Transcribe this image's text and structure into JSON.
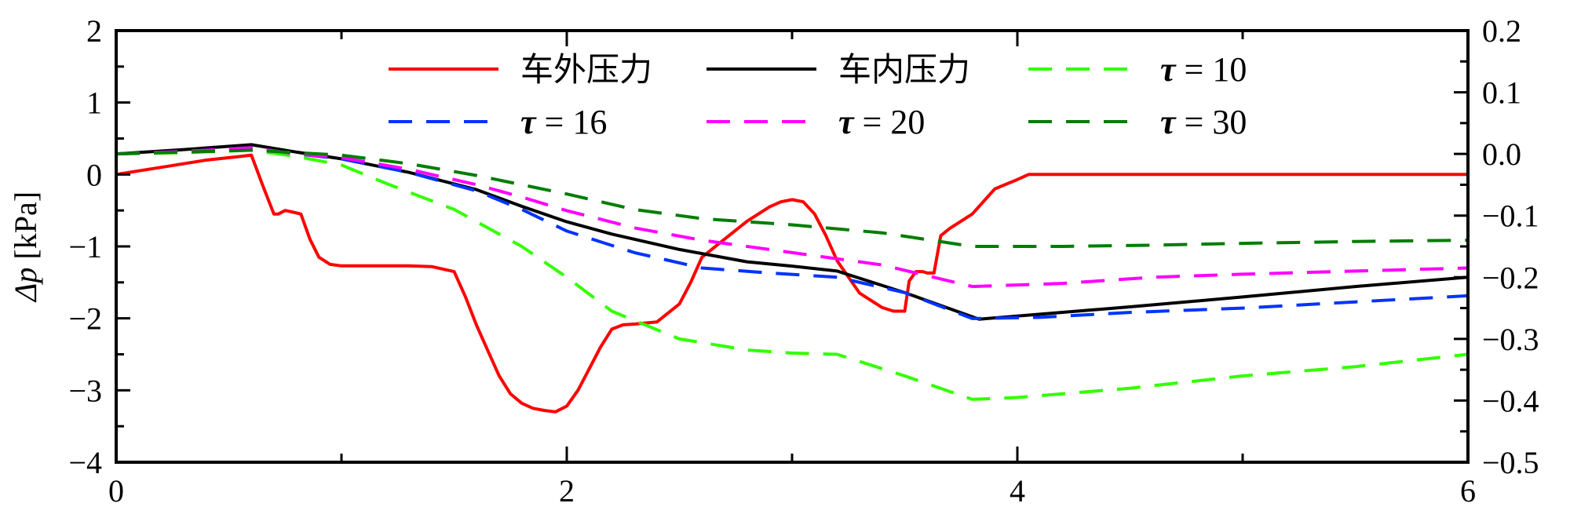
{
  "chart_data": {
    "type": "line",
    "title": "",
    "xlabel": "",
    "ylabel": "Δp [kPa]",
    "ylabel_var": "Δp",
    "ylabel_unit": " [kPa]",
    "xlim": [
      0,
      6
    ],
    "ylim": [
      -4,
      2
    ],
    "y2lim": [
      -0.5,
      0.2
    ],
    "x_ticks": [
      "0",
      "2",
      "4",
      "6"
    ],
    "y_ticks": [
      "−4",
      "−3",
      "−2",
      "−1",
      "0",
      "1",
      "2"
    ],
    "y2_ticks": [
      "−0.5",
      "−0.4",
      "−0.3",
      "−0.2",
      "−0.1",
      "0.0",
      "0.1",
      "0.2"
    ],
    "grid": false,
    "legend_position": "top",
    "series": [
      {
        "name": "车外压力",
        "legend_text": "车外压力",
        "color": "#ff0000",
        "dash": "solid",
        "axis": "left",
        "x": [
          0,
          0.2,
          0.4,
          0.55,
          0.6,
          0.65,
          0.7,
          0.72,
          0.75,
          0.78,
          0.82,
          0.86,
          0.9,
          0.95,
          1.0,
          1.1,
          1.2,
          1.3,
          1.4,
          1.5,
          1.55,
          1.6,
          1.65,
          1.7,
          1.75,
          1.8,
          1.85,
          1.9,
          1.95,
          2.0,
          2.05,
          2.1,
          2.15,
          2.2,
          2.25,
          2.3,
          2.4,
          2.5,
          2.55,
          2.6,
          2.7,
          2.8,
          2.9,
          2.95,
          3.0,
          3.05,
          3.1,
          3.15,
          3.2,
          3.3,
          3.4,
          3.45,
          3.5,
          3.52,
          3.55,
          3.58,
          3.6,
          3.63,
          3.66,
          3.7,
          3.8,
          3.9,
          4.0,
          4.05,
          4.1,
          4.5,
          5.0,
          5.5,
          6.0
        ],
        "y": [
          0,
          0.1,
          0.2,
          0.25,
          0.27,
          -0.15,
          -0.55,
          -0.55,
          -0.5,
          -0.52,
          -0.55,
          -0.9,
          -1.15,
          -1.25,
          -1.27,
          -1.27,
          -1.27,
          -1.27,
          -1.28,
          -1.35,
          -1.7,
          -2.1,
          -2.45,
          -2.8,
          -3.05,
          -3.18,
          -3.25,
          -3.28,
          -3.3,
          -3.22,
          -3.0,
          -2.7,
          -2.4,
          -2.15,
          -2.09,
          -2.08,
          -2.05,
          -1.8,
          -1.5,
          -1.15,
          -0.9,
          -0.65,
          -0.45,
          -0.38,
          -0.35,
          -0.38,
          -0.55,
          -0.85,
          -1.2,
          -1.65,
          -1.85,
          -1.9,
          -1.9,
          -1.48,
          -1.35,
          -1.35,
          -1.37,
          -1.37,
          -0.85,
          -0.75,
          -0.55,
          -0.2,
          -0.07,
          0,
          0,
          0,
          0,
          0,
          0
        ]
      },
      {
        "name": "车内压力",
        "legend_text": "车内压力",
        "color": "#000000",
        "dash": "solid",
        "axis": "right",
        "x": [
          0,
          0.3,
          0.6,
          0.8,
          1.0,
          1.3,
          1.6,
          1.8,
          2.0,
          2.2,
          2.5,
          2.8,
          3.0,
          3.2,
          3.5,
          3.83,
          4.1,
          4.5,
          5.0,
          5.5,
          6.0
        ],
        "y": [
          0,
          0.007,
          0.015,
          0.003,
          -0.008,
          -0.03,
          -0.058,
          -0.085,
          -0.11,
          -0.13,
          -0.155,
          -0.175,
          -0.182,
          -0.19,
          -0.225,
          -0.268,
          -0.26,
          -0.248,
          -0.232,
          -0.215,
          -0.2
        ]
      },
      {
        "name": "τ = 10",
        "legend_sym": "τ",
        "legend_value": " = 10",
        "color": "#33ff00",
        "dash": "dashed",
        "axis": "right",
        "x": [
          0,
          0.3,
          0.6,
          0.8,
          1.0,
          1.2,
          1.5,
          1.8,
          2.0,
          2.2,
          2.5,
          2.8,
          3.0,
          3.2,
          3.5,
          3.8,
          4.0,
          4.5,
          5.0,
          5.5,
          6.0
        ],
        "y": [
          0,
          0.002,
          0.006,
          -0.004,
          -0.018,
          -0.048,
          -0.09,
          -0.15,
          -0.2,
          -0.255,
          -0.3,
          -0.318,
          -0.323,
          -0.325,
          -0.36,
          -0.398,
          -0.395,
          -0.38,
          -0.36,
          -0.345,
          -0.325
        ]
      },
      {
        "name": "τ = 16",
        "legend_sym": "τ",
        "legend_value": " = 16",
        "color": "#0033ff",
        "dash": "dashed",
        "axis": "right",
        "x": [
          0,
          0.3,
          0.6,
          0.8,
          1.0,
          1.3,
          1.6,
          1.8,
          2.0,
          2.3,
          2.6,
          2.9,
          3.2,
          3.5,
          3.8,
          4.1,
          4.5,
          5.0,
          5.5,
          6.0
        ],
        "y": [
          0,
          0.004,
          0.01,
          0.0,
          -0.008,
          -0.03,
          -0.06,
          -0.09,
          -0.125,
          -0.16,
          -0.185,
          -0.193,
          -0.2,
          -0.225,
          -0.267,
          -0.265,
          -0.257,
          -0.25,
          -0.24,
          -0.23
        ]
      },
      {
        "name": "τ = 20",
        "legend_sym": "τ",
        "legend_value": " = 20",
        "color": "#ff00ff",
        "dash": "dashed",
        "axis": "right",
        "x": [
          0,
          0.3,
          0.6,
          0.8,
          1.0,
          1.3,
          1.6,
          1.8,
          2.0,
          2.3,
          2.6,
          3.0,
          3.4,
          3.8,
          4.2,
          4.6,
          5.0,
          5.5,
          6.0
        ],
        "y": [
          0,
          0.004,
          0.01,
          0.0,
          -0.006,
          -0.025,
          -0.05,
          -0.07,
          -0.092,
          -0.12,
          -0.14,
          -0.16,
          -0.18,
          -0.215,
          -0.21,
          -0.2,
          -0.195,
          -0.19,
          -0.185
        ]
      },
      {
        "name": "τ = 30",
        "legend_sym": "τ",
        "legend_value": " = 30",
        "color": "#007d00",
        "dash": "dashed",
        "axis": "right",
        "x": [
          0,
          0.3,
          0.6,
          0.8,
          1.0,
          1.3,
          1.6,
          2.0,
          2.3,
          2.6,
          3.0,
          3.4,
          3.8,
          4.2,
          4.6,
          5.0,
          5.5,
          6.0
        ],
        "y": [
          0,
          0.003,
          0.006,
          0.002,
          -0.002,
          -0.016,
          -0.035,
          -0.065,
          -0.09,
          -0.105,
          -0.115,
          -0.128,
          -0.15,
          -0.15,
          -0.148,
          -0.145,
          -0.142,
          -0.14
        ]
      }
    ]
  }
}
